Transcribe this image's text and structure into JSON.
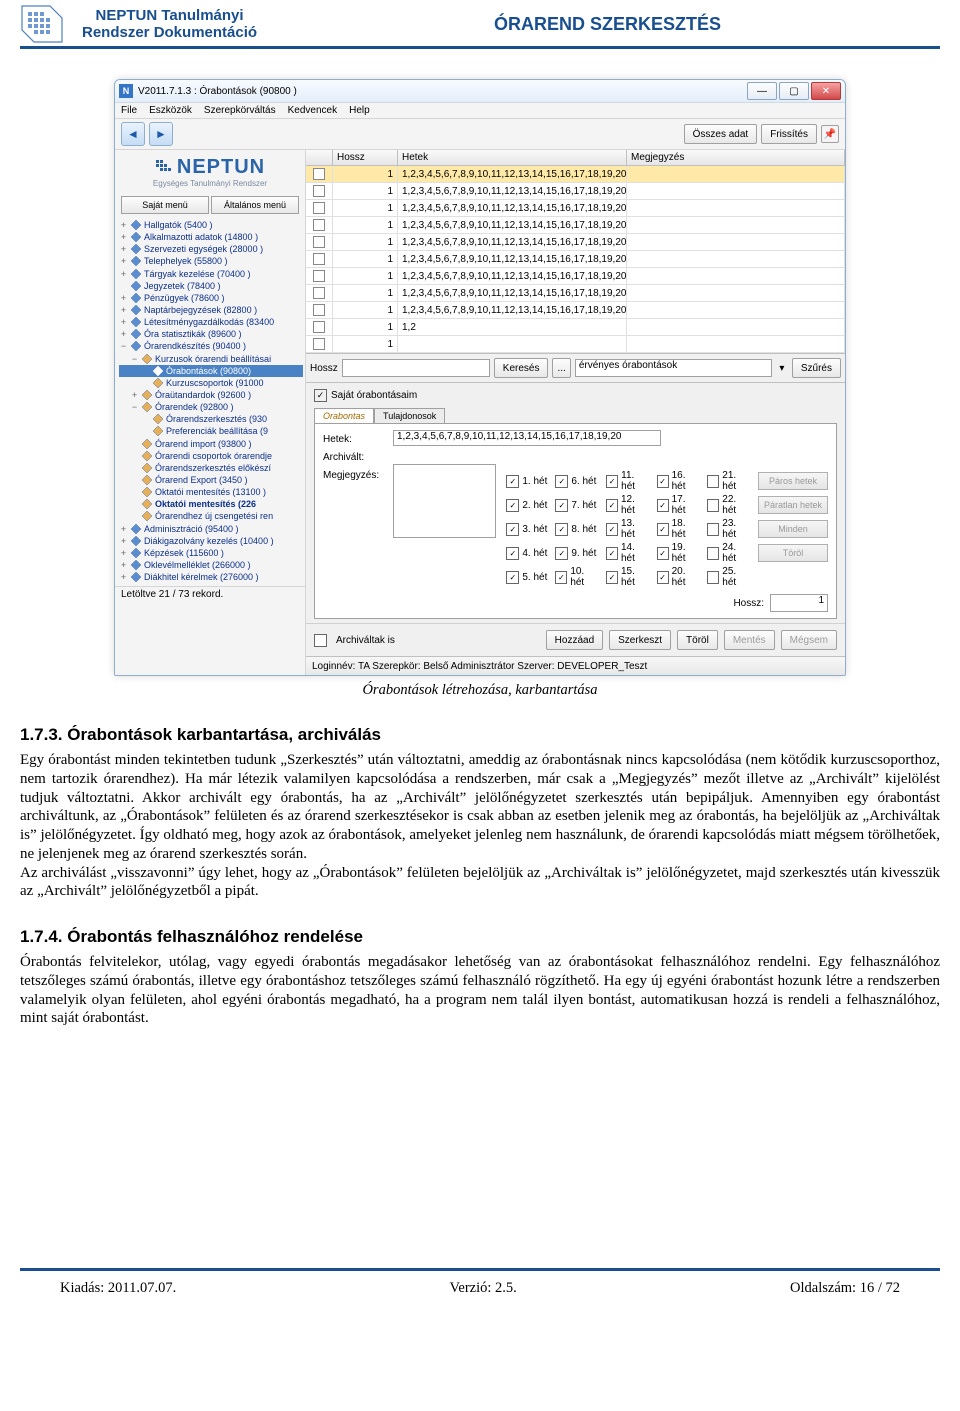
{
  "page": {
    "header_left_line1": "NEPTUN Tanulmányi",
    "header_left_line2": "Rendszer Dokumentáció",
    "header_right": "ÓRAREND SZERKESZTÉS",
    "caption": "Órabontások létrehozása, karbantartása",
    "h1_num": "1.7.3.",
    "h1_text": "Órabontások karbantartása, archiválás",
    "p1": "Egy órabontást minden tekintetben tudunk „Szerkesztés” után változtatni, ameddig az órabontásnak nincs kapcsolódása (nem kötődik kurzuscsoporthoz, nem tartozik órarendhez). Ha már létezik valamilyen kapcsolódása a rendszerben, már csak a „Megjegyzés” mezőt illetve az „Archivált” kijelölést tudjuk változtatni. Akkor archivált egy órabontás, ha az „Archivált” jelölőnégyzetet szerkesztés után bepipáljuk. Amennyiben egy órabontást archiváltunk, az „Órabontások” felületen és az órarend szerkesztésekor is csak abban az esetben jelenik meg az órabontás, ha bejelöljük az „Archiváltak is” jelölőnégyzetet. Így oldható meg, hogy azok az órabontások, amelyeket jelenleg nem használunk, de órarendi kapcsolódás miatt mégsem törölhetőek, ne jelenjenek meg az órarend szerkesztés során.",
    "p1b": "Az archiválást „visszavonni” úgy lehet, hogy az „Órabontások” felületen bejelöljük az „Archiváltak is” jelölőnégyzetet, majd szerkesztés után kivesszük az „Archivált” jelölőnégyzetből a pipát.",
    "h2_num": "1.7.4.",
    "h2_text": "Órabontás felhasználóhoz rendelése",
    "p2": "Órabontás felvitelekor, utólag, vagy egyedi órabontás megadásakor lehetőség van az órabontásokat felhasználóhoz rendelni. Egy felhasználóhoz tetszőleges számú órabontás, illetve egy órabontáshoz tetszőleges számú felhasználó rögzíthető. Ha egy új egyéni órabontást hozunk létre a rendszerben valamelyik olyan felületen, ahol egyéni órabontás megadható, ha a program nem talál ilyen bontást, automatikusan hozzá is rendeli a felhasználóhoz, mint saját órabontást.",
    "footer_kiadas": "Kiadás: 2011.07.07.",
    "footer_verzio": "Verzió: 2.5.",
    "footer_oldal": "Oldalszám: 16 / 72"
  },
  "win": {
    "title": "V2011.7.1.3 : Órabontások (90800 )",
    "menus": [
      "File",
      "Eszközök",
      "Szerepkörváltás",
      "Kedvencek",
      "Help"
    ],
    "toolbar": {
      "osszes": "Összes adat",
      "frissit": "Frissítés"
    },
    "submenus": {
      "sajat": "Saját menü",
      "altalanos": "Általános menü"
    },
    "sidebar_logo_big": "NEPTUN",
    "sidebar_logo_small": "Egységes Tanulmányi Rendszer",
    "tree": [
      {
        "d": 0,
        "exp": "+",
        "label": "Hallgatók (5400 )"
      },
      {
        "d": 0,
        "exp": "+",
        "label": "Alkalmazotti adatok (14800 )"
      },
      {
        "d": 0,
        "exp": "+",
        "label": "Szervezeti egységek (28000 )"
      },
      {
        "d": 0,
        "exp": "+",
        "label": "Telephelyek (55800 )"
      },
      {
        "d": 0,
        "exp": "+",
        "label": "Tárgyak kezelése (70400 )"
      },
      {
        "d": 0,
        "exp": "",
        "label": "Jegyzetek (78400 )"
      },
      {
        "d": 0,
        "exp": "+",
        "label": "Pénzügyek (78600 )"
      },
      {
        "d": 0,
        "exp": "+",
        "label": "Naptárbejegyzések (82800 )"
      },
      {
        "d": 0,
        "exp": "+",
        "label": "Létesítménygazdálkodás (83400"
      },
      {
        "d": 0,
        "exp": "+",
        "label": "Óra statisztikák (89600 )"
      },
      {
        "d": 0,
        "exp": "−",
        "label": "Órarendkészítés (90400 )"
      },
      {
        "d": 1,
        "exp": "−",
        "label": "Kurzusok órarendi beállításai"
      },
      {
        "d": 2,
        "exp": "",
        "label": "Órabontások (90800)",
        "sel": true
      },
      {
        "d": 2,
        "exp": "",
        "label": "Kurzuscsoportok (91000"
      },
      {
        "d": 1,
        "exp": "+",
        "label": "Óraütandardok (92600 )"
      },
      {
        "d": 1,
        "exp": "−",
        "label": "Órarendek (92800 )"
      },
      {
        "d": 2,
        "exp": "",
        "label": "Órarendszerkesztés (930"
      },
      {
        "d": 2,
        "exp": "",
        "label": "Preferenciák beállítása (9"
      },
      {
        "d": 1,
        "exp": "",
        "label": "Órarend import (93800 )"
      },
      {
        "d": 1,
        "exp": "",
        "label": "Órarendi csoportok órarendje"
      },
      {
        "d": 1,
        "exp": "",
        "label": "Órarendszerkesztés előkészí"
      },
      {
        "d": 1,
        "exp": "",
        "label": "Órarend Export (3450 )"
      },
      {
        "d": 1,
        "exp": "",
        "label": "Oktatói mentesítés (13100 )"
      },
      {
        "d": 1,
        "exp": "",
        "label": "Oktatói mentesítés (226",
        "bold": true
      },
      {
        "d": 1,
        "exp": "",
        "label": "Órarendhez új csengetési ren"
      },
      {
        "d": 0,
        "exp": "+",
        "label": "Adminisztráció (95400 )"
      },
      {
        "d": 0,
        "exp": "+",
        "label": "Diákigazolvány kezelés (10400 )"
      },
      {
        "d": 0,
        "exp": "+",
        "label": "Képzések (115600 )"
      },
      {
        "d": 0,
        "exp": "+",
        "label": "Oklevélmelléklet (266000 )"
      },
      {
        "d": 0,
        "exp": "+",
        "label": "Diákhitel kérelmek (276000 )"
      }
    ],
    "record": "Letöltve 21 / 73 rekord.",
    "grid": {
      "cols": [
        "",
        "Hossz",
        "Hetek",
        "Megjegyzés"
      ],
      "rows": [
        {
          "hl": true,
          "h": "1",
          "w": "1,2,3,4,5,6,7,8,9,10,11,12,13,14,15,16,17,18,19,20"
        },
        {
          "hl": false,
          "h": "1",
          "w": "1,2,3,4,5,6,7,8,9,10,11,12,13,14,15,16,17,18,19,20"
        },
        {
          "hl": false,
          "h": "1",
          "w": "1,2,3,4,5,6,7,8,9,10,11,12,13,14,15,16,17,18,19,20"
        },
        {
          "hl": false,
          "h": "1",
          "w": "1,2,3,4,5,6,7,8,9,10,11,12,13,14,15,16,17,18,19,20"
        },
        {
          "hl": false,
          "h": "1",
          "w": "1,2,3,4,5,6,7,8,9,10,11,12,13,14,15,16,17,18,19,20"
        },
        {
          "hl": false,
          "h": "1",
          "w": "1,2,3,4,5,6,7,8,9,10,11,12,13,14,15,16,17,18,19,20"
        },
        {
          "hl": false,
          "h": "1",
          "w": "1,2,3,4,5,6,7,8,9,10,11,12,13,14,15,16,17,18,19,20"
        },
        {
          "hl": false,
          "h": "1",
          "w": "1,2,3,4,5,6,7,8,9,10,11,12,13,14,15,16,17,18,19,20"
        },
        {
          "hl": false,
          "h": "1",
          "w": "1,2,3,4,5,6,7,8,9,10,11,12,13,14,15,16,17,18,19,20"
        },
        {
          "hl": false,
          "h": "1",
          "w": "1,2"
        },
        {
          "hl": false,
          "h": "1",
          "w": ""
        }
      ]
    },
    "filter": {
      "hossz_label": "Hossz",
      "kereses": "Keresés",
      "dots": "...",
      "dd": "érvényes órabontások",
      "szures": "Szűrés"
    },
    "detail": {
      "check_label": "Saját órabontásaim",
      "tab1": "Orabontas",
      "tab2": "Tulajdonosok",
      "hetek_label": "Hetek:",
      "hetek_val": "1,2,3,4,5,6,7,8,9,10,11,12,13,14,15,16,17,18,19,20",
      "archivalt_label": "Archivált:",
      "megjegyzes_label": "Megjegyzés:",
      "weeks": [
        [
          "1. hét",
          true
        ],
        [
          "6. hét",
          true
        ],
        [
          "11. hét",
          true
        ],
        [
          "16. hét",
          true
        ],
        [
          "21. hét",
          false
        ],
        [
          "2. hét",
          true
        ],
        [
          "7. hét",
          true
        ],
        [
          "12. hét",
          true
        ],
        [
          "17. hét",
          true
        ],
        [
          "22. hét",
          false
        ],
        [
          "3. hét",
          true
        ],
        [
          "8. hét",
          true
        ],
        [
          "13. hét",
          true
        ],
        [
          "18. hét",
          true
        ],
        [
          "23. hét",
          false
        ],
        [
          "4. hét",
          true
        ],
        [
          "9. hét",
          true
        ],
        [
          "14. hét",
          true
        ],
        [
          "19. hét",
          true
        ],
        [
          "24. hét",
          false
        ],
        [
          "5. hét",
          true
        ],
        [
          "10. hét",
          true
        ],
        [
          "15. hét",
          true
        ],
        [
          "20. hét",
          true
        ],
        [
          "25. hét",
          false
        ]
      ],
      "side_buttons": [
        "Páros hetek",
        "Páratlan hetek",
        "Minden",
        "Töröl"
      ],
      "hossz_label": "Hossz:",
      "hossz_val": "1"
    },
    "action": {
      "archivaltak": "Archiváltak is",
      "hozzaad": "Hozzáad",
      "szerkeszt": "Szerkeszt",
      "torol": "Töröl",
      "mentes": "Mentés",
      "megsem": "Mégsem"
    },
    "status": "Loginnév: TA   Szerepkör: Belső Adminisztrátor   Szerver: DEVELOPER_Teszt"
  }
}
